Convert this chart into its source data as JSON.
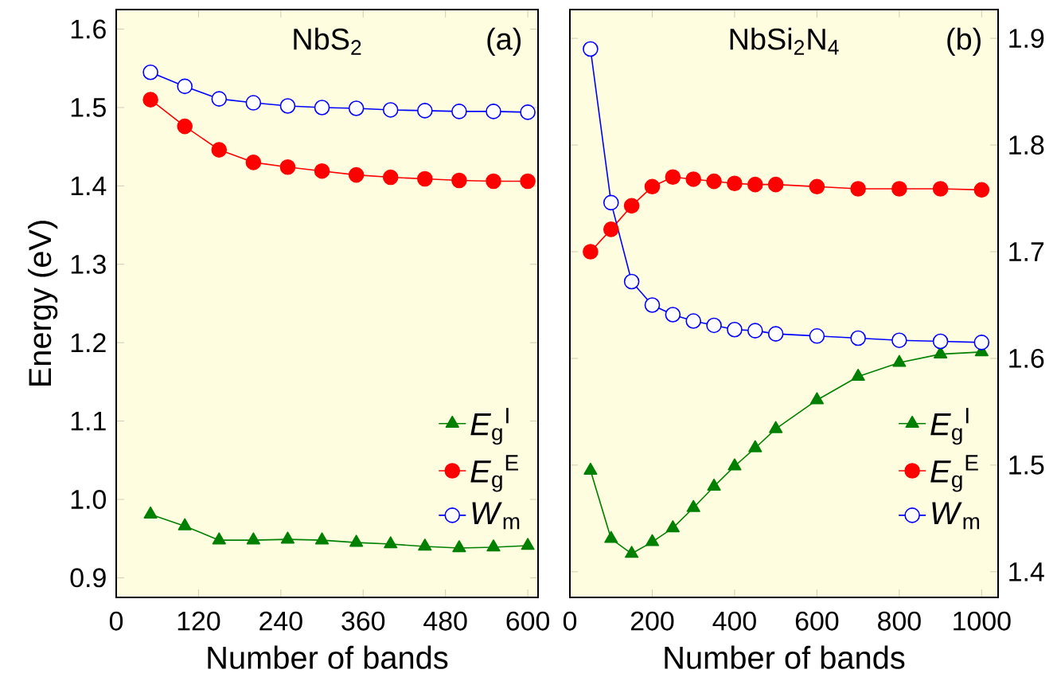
{
  "chart_data": [
    {
      "type": "line",
      "title": "NbS$_{2}$",
      "annotations": [
        "(a)"
      ],
      "xlabel": "Number of bands",
      "ylabel": "Energy (eV)",
      "x": [
        50,
        100,
        150,
        200,
        250,
        300,
        350,
        400,
        450,
        500,
        550,
        600
      ],
      "xlim": [
        0,
        615
      ],
      "xticks": [
        0,
        120,
        240,
        360,
        480,
        600
      ],
      "ylim": [
        0.875,
        1.625
      ],
      "yticks": [
        0.9,
        {
          "value": 1.0,
          "label": "1.0"
        },
        1.1,
        1.2,
        1.3,
        1.4,
        1.5,
        1.6
      ],
      "legend": "right",
      "grid": false,
      "series": [
        {
          "name": "*E*$_{g}$$^{I}$",
          "color": "#008000",
          "marker": "triangle",
          "values": [
            0.981,
            0.966,
            0.948,
            0.948,
            0.949,
            0.948,
            0.945,
            0.943,
            0.94,
            0.938,
            0.939,
            0.941
          ]
        },
        {
          "name": "*E*$_{g}$$^{E}$",
          "color": "#ff0000",
          "marker": "circle",
          "values": [
            1.51,
            1.476,
            1.446,
            1.43,
            1.424,
            1.419,
            1.414,
            1.411,
            1.409,
            1.407,
            1.406,
            1.406
          ]
        },
        {
          "name": "*W*$_{m}$",
          "color": "#0000ff",
          "marker": "circle",
          "values": [
            1.545,
            1.527,
            1.511,
            1.506,
            1.502,
            1.5,
            1.499,
            1.497,
            1.496,
            1.495,
            1.495,
            1.494
          ]
        }
      ]
    },
    {
      "type": "line",
      "title": "NbSi$_{2}$N$_{4}$",
      "annotations": [
        "(b)"
      ],
      "xlabel": "Number of bands",
      "x": [
        50,
        100,
        150,
        200,
        250,
        300,
        350,
        400,
        450,
        500,
        600,
        700,
        800,
        900,
        1000
      ],
      "xlim": [
        0,
        1040
      ],
      "xticks": [
        0,
        200,
        400,
        600,
        800,
        1000
      ],
      "y2lim": [
        1.376,
        1.927
      ],
      "y2ticks": [
        1.4,
        1.5,
        1.6,
        1.7,
        1.8,
        1.9
      ],
      "legend": "right",
      "grid": false,
      "series": [
        {
          "name": "*E*$_{g}$$^{I}$",
          "color": "#008000",
          "marker": "triangle",
          "axis": "y2",
          "values": [
            1.495,
            1.431,
            1.417,
            1.428,
            1.441,
            1.46,
            1.48,
            1.499,
            1.516,
            1.534,
            1.561,
            1.583,
            1.596,
            1.604,
            1.606
          ]
        },
        {
          "name": "*E*$_{g}$$^{E}$",
          "color": "#ff0000",
          "marker": "circle",
          "axis": "y2",
          "values": [
            1.7,
            1.721,
            1.743,
            1.761,
            1.77,
            1.768,
            1.766,
            1.764,
            1.763,
            1.763,
            1.761,
            1.759,
            1.759,
            1.759,
            1.758
          ]
        },
        {
          "name": "*W*$_{m}$",
          "color": "#0000ff",
          "marker": "circle",
          "axis": "y2",
          "values": [
            1.89,
            1.746,
            1.672,
            1.65,
            1.641,
            1.635,
            1.631,
            1.627,
            1.626,
            1.623,
            1.621,
            1.619,
            1.617,
            1.616,
            1.615
          ]
        }
      ]
    }
  ]
}
